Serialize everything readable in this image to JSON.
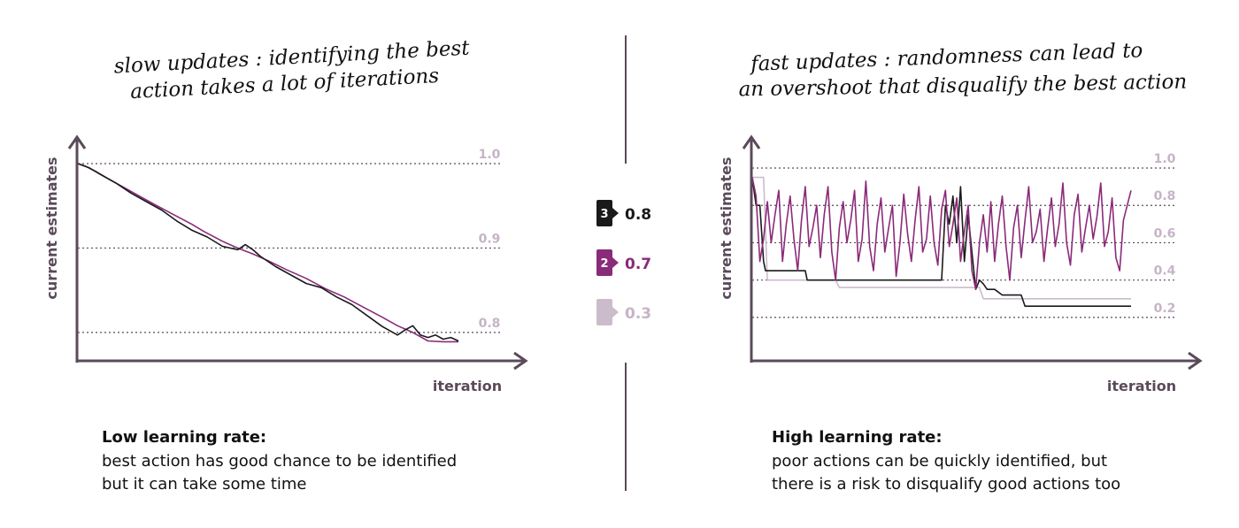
{
  "colors": {
    "axis": "#5b4a5a",
    "divider": "#5b4a5a",
    "gridline": "#5b4a5a",
    "action3": "#1a1a1a",
    "action2": "#8a2a7a",
    "action1": "#cbbccb",
    "tick": "#c6b4c6"
  },
  "legend": [
    {
      "badge": "3",
      "value": "0.8",
      "color": "#1a1a1a",
      "text_color": "#1a1a1a"
    },
    {
      "badge": "2",
      "value": "0.7",
      "color": "#8a2a7a",
      "text_color": "#8a2a7a"
    },
    {
      "badge": "",
      "value": "0.3",
      "color": "#cbbccb",
      "text_color": "#c6b4c6"
    }
  ],
  "chart_data": [
    {
      "type": "line",
      "title_lines": [
        "slow updates : identifying the best",
        "action takes a lot of iterations"
      ],
      "ylabel": "current estimates",
      "xlabel": "iteration",
      "yticks": [
        "1.0",
        "0.9",
        "0.8"
      ],
      "ylim": [
        0.78,
        1.0
      ],
      "xlim": [
        0,
        100
      ],
      "grid": true,
      "caption_title": "Low learning rate:",
      "caption_lines": [
        "best action has good chance to be identified",
        "but it can take some time"
      ],
      "series": [
        {
          "color": "#8a2a7a",
          "x": [
            0,
            2,
            5,
            8,
            12,
            16,
            20,
            25,
            30,
            33,
            38,
            42,
            46,
            50,
            55,
            60,
            65,
            70,
            75,
            80,
            84,
            88,
            92,
            96,
            100
          ],
          "y": [
            1.0,
            0.997,
            0.99,
            0.982,
            0.972,
            0.962,
            0.952,
            0.94,
            0.928,
            0.92,
            0.908,
            0.9,
            0.893,
            0.885,
            0.874,
            0.864,
            0.852,
            0.842,
            0.83,
            0.818,
            0.808,
            0.8,
            0.79,
            0.789,
            0.789
          ]
        },
        {
          "color": "#1a1a1a",
          "x": [
            0,
            3,
            6,
            10,
            14,
            18,
            22,
            26,
            30,
            34,
            38,
            42,
            44,
            46,
            48,
            52,
            56,
            60,
            64,
            68,
            72,
            76,
            80,
            84,
            86,
            88,
            90,
            92,
            94,
            96,
            98,
            100
          ],
          "y": [
            1.0,
            0.995,
            0.987,
            0.977,
            0.965,
            0.955,
            0.945,
            0.932,
            0.921,
            0.913,
            0.902,
            0.898,
            0.904,
            0.898,
            0.89,
            0.878,
            0.868,
            0.858,
            0.853,
            0.842,
            0.833,
            0.82,
            0.807,
            0.797,
            0.803,
            0.808,
            0.797,
            0.794,
            0.797,
            0.792,
            0.794,
            0.79
          ]
        }
      ]
    },
    {
      "type": "line",
      "title_lines": [
        "fast updates : randomness can lead to",
        "an overshoot that disqualify the best action"
      ],
      "ylabel": "current estimates",
      "xlabel": "iteration",
      "yticks": [
        "1.0",
        "0.8",
        "0.6",
        "0.4",
        "0.2"
      ],
      "ylim": [
        0.1,
        1.0
      ],
      "xlim": [
        0,
        100
      ],
      "grid": true,
      "caption_title": "High learning rate:",
      "caption_lines": [
        "poor actions can be quickly identified, but",
        "there is a risk to disqualify good actions too"
      ],
      "series": [
        {
          "color": "#cbbccb",
          "x": [
            0,
            3,
            4,
            22,
            23,
            60,
            61,
            100
          ],
          "y": [
            0.95,
            0.95,
            0.4,
            0.4,
            0.36,
            0.36,
            0.3,
            0.3
          ]
        },
        {
          "color": "#1a1a1a",
          "x": [
            0,
            1,
            2,
            3,
            3.5,
            4,
            14,
            14.5,
            15,
            50,
            51,
            52,
            53,
            54,
            55,
            56,
            57,
            58,
            59,
            60,
            61,
            62,
            63,
            64,
            66,
            68,
            69,
            70,
            71,
            72,
            100
          ],
          "y": [
            0.95,
            0.8,
            0.8,
            0.5,
            0.45,
            0.45,
            0.45,
            0.4,
            0.4,
            0.4,
            0.8,
            0.7,
            0.85,
            0.6,
            0.9,
            0.5,
            0.75,
            0.55,
            0.35,
            0.4,
            0.38,
            0.35,
            0.35,
            0.35,
            0.32,
            0.32,
            0.32,
            0.32,
            0.32,
            0.26,
            0.26
          ]
        },
        {
          "color": "#8a2a7a",
          "x": [
            0,
            1,
            2,
            3,
            4,
            5,
            6,
            7,
            8,
            9,
            10,
            11,
            12,
            13,
            14,
            15,
            16,
            17,
            18,
            19,
            20,
            21,
            22,
            23,
            24,
            25,
            26,
            27,
            28,
            29,
            30,
            31,
            32,
            33,
            34,
            35,
            36,
            37,
            38,
            39,
            40,
            41,
            42,
            43,
            44,
            45,
            46,
            47,
            48,
            49,
            50,
            51,
            52,
            53,
            54,
            55,
            56,
            57,
            58,
            59,
            60,
            61,
            62,
            63,
            64,
            65,
            66,
            67,
            68,
            69,
            70,
            71,
            72,
            73,
            74,
            75,
            76,
            77,
            78,
            79,
            80,
            81,
            82,
            83,
            84,
            85,
            86,
            87,
            88,
            89,
            90,
            91,
            92,
            93,
            94,
            95,
            96,
            97,
            98,
            99,
            100
          ],
          "y": [
            0.95,
            0.85,
            0.5,
            0.62,
            0.82,
            0.6,
            0.75,
            0.88,
            0.5,
            0.7,
            0.85,
            0.62,
            0.45,
            0.72,
            0.9,
            0.58,
            0.68,
            0.8,
            0.52,
            0.75,
            0.9,
            0.55,
            0.4,
            0.68,
            0.82,
            0.6,
            0.72,
            0.88,
            0.5,
            0.62,
            0.93,
            0.58,
            0.45,
            0.7,
            0.84,
            0.55,
            0.68,
            0.8,
            0.42,
            0.6,
            0.86,
            0.65,
            0.5,
            0.72,
            0.9,
            0.55,
            0.62,
            0.85,
            0.6,
            0.48,
            0.78,
            0.88,
            0.58,
            0.7,
            0.84,
            0.5,
            0.66,
            0.8,
            0.45,
            0.35,
            0.6,
            0.75,
            0.55,
            0.82,
            0.5,
            0.7,
            0.85,
            0.58,
            0.4,
            0.68,
            0.8,
            0.52,
            0.72,
            0.9,
            0.6,
            0.66,
            0.78,
            0.5,
            0.68,
            0.84,
            0.58,
            0.7,
            0.92,
            0.6,
            0.48,
            0.75,
            0.86,
            0.55,
            0.68,
            0.8,
            0.62,
            0.74,
            0.92,
            0.58,
            0.66,
            0.84,
            0.52,
            0.45,
            0.72,
            0.8,
            0.88
          ]
        }
      ]
    }
  ]
}
